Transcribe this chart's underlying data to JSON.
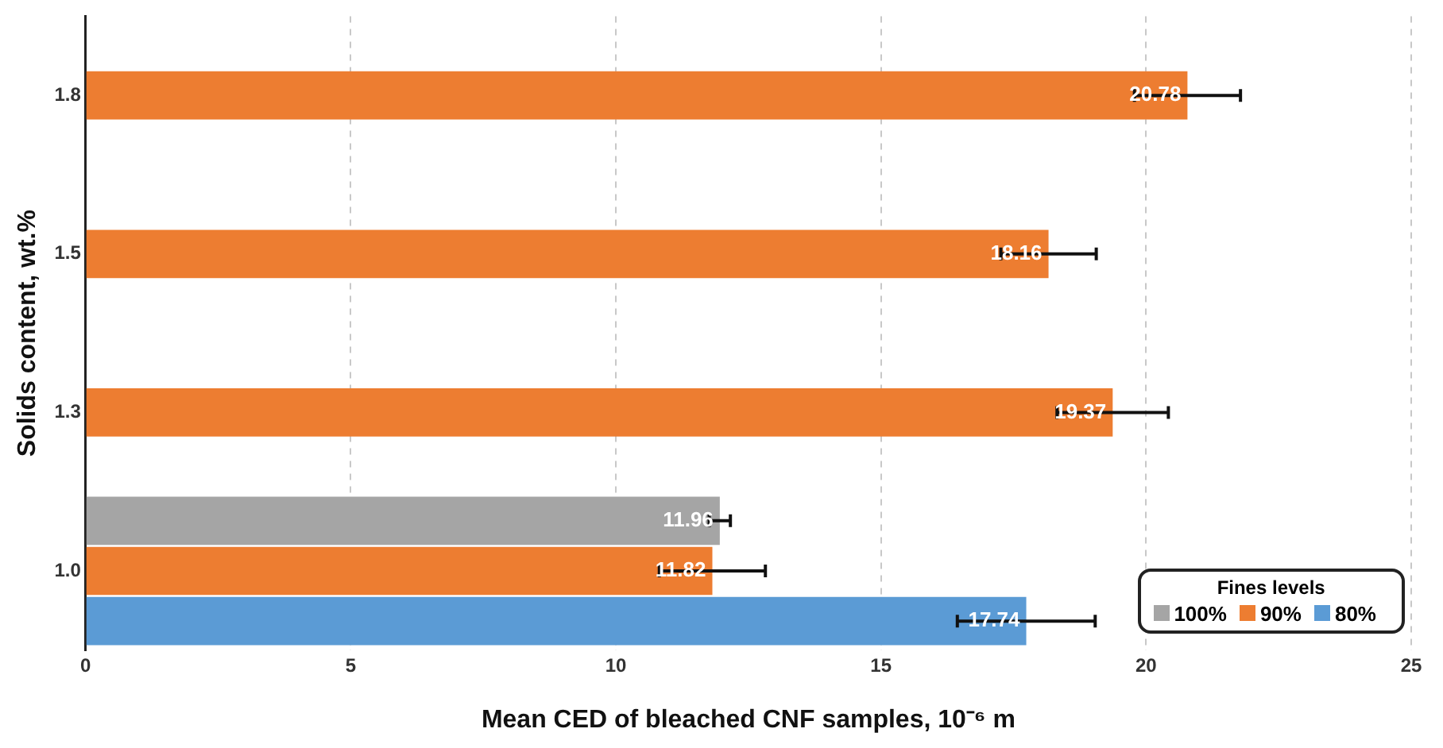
{
  "chart_data": {
    "type": "bar",
    "orientation": "horizontal",
    "xlabel": "Mean CED of bleached CNF samples, 10⁻⁶ m",
    "ylabel": "Solids content, wt.%",
    "legend_title": "Fines levels",
    "categories": [
      "1.8",
      "1.5",
      "1.3",
      "1.0"
    ],
    "series": [
      {
        "name": "100%",
        "color": "#a5a5a5",
        "values": [
          null,
          null,
          null,
          11.96
        ],
        "errors": [
          null,
          null,
          null,
          0.2
        ]
      },
      {
        "name": "90%",
        "color": "#ed7d31",
        "values": [
          20.78,
          18.16,
          19.37,
          11.82
        ],
        "errors": [
          1.0,
          0.9,
          1.05,
          1.0
        ]
      },
      {
        "name": "80%",
        "color": "#5b9bd5",
        "values": [
          null,
          null,
          null,
          17.74
        ],
        "errors": [
          null,
          null,
          null,
          1.3
        ]
      }
    ],
    "xlim": [
      0,
      25
    ],
    "xticks": [
      0,
      5,
      10,
      15,
      20,
      25
    ],
    "grid": "x",
    "legend": "bottom right",
    "data_labels": true
  }
}
